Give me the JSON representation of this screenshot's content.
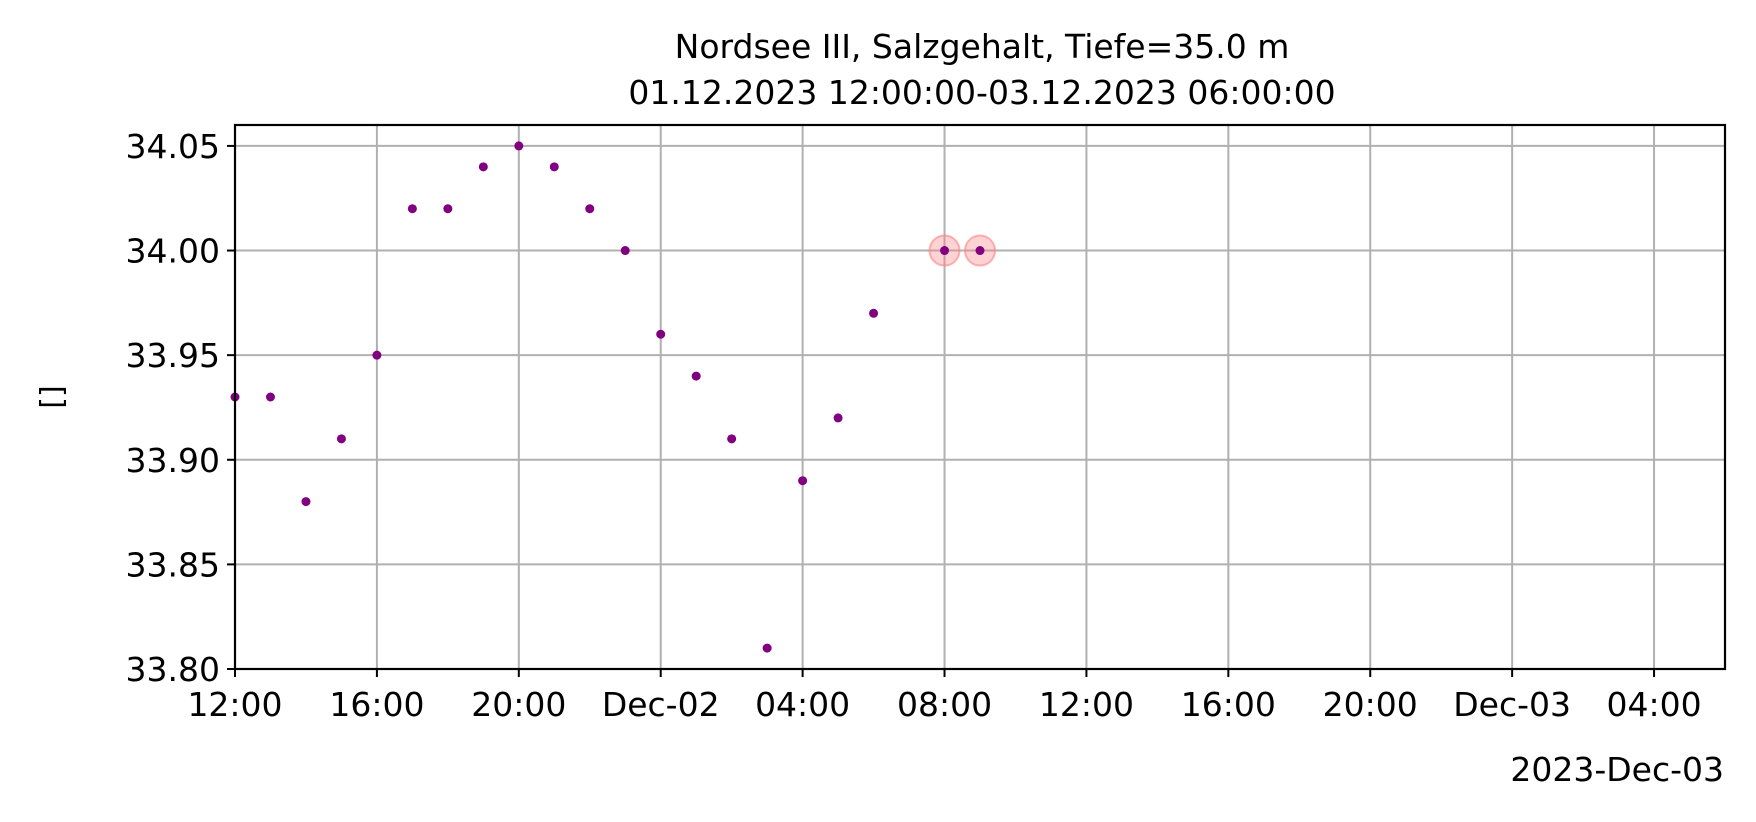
{
  "chart_data": {
    "type": "scatter",
    "title": "Nordsee III, Salzgehalt, Tiefe=35.0 m",
    "subtitle": "01.12.2023 12:00:00-03.12.2023 06:00:00",
    "xlabel": "",
    "ylabel": "[]",
    "x_offset_label": "2023-Dec-03",
    "xlim": [
      "2023-12-01 12:00",
      "2023-12-03 06:00"
    ],
    "ylim": [
      33.8,
      34.06
    ],
    "grid": true,
    "x_ticks": [
      {
        "x": "2023-12-01 12:00",
        "label": "12:00"
      },
      {
        "x": "2023-12-01 16:00",
        "label": "16:00"
      },
      {
        "x": "2023-12-01 20:00",
        "label": "20:00"
      },
      {
        "x": "2023-12-02 00:00",
        "label": "Dec-02"
      },
      {
        "x": "2023-12-02 04:00",
        "label": "04:00"
      },
      {
        "x": "2023-12-02 08:00",
        "label": "08:00"
      },
      {
        "x": "2023-12-02 12:00",
        "label": "12:00"
      },
      {
        "x": "2023-12-02 16:00",
        "label": "16:00"
      },
      {
        "x": "2023-12-02 20:00",
        "label": "20:00"
      },
      {
        "x": "2023-12-03 00:00",
        "label": "Dec-03"
      },
      {
        "x": "2023-12-03 04:00",
        "label": "04:00"
      }
    ],
    "y_ticks": [
      {
        "y": 33.8,
        "label": "33.80"
      },
      {
        "y": 33.85,
        "label": "33.85"
      },
      {
        "y": 33.9,
        "label": "33.90"
      },
      {
        "y": 33.95,
        "label": "33.95"
      },
      {
        "y": 34.0,
        "label": "34.00"
      },
      {
        "y": 34.05,
        "label": "34.05"
      }
    ],
    "colors": {
      "point": "#800080",
      "highlight": "#ff8080",
      "grid": "#b0b0b0"
    },
    "series": [
      {
        "points": [
          {
            "x": "2023-12-01 12:00",
            "y": 33.93
          },
          {
            "x": "2023-12-01 13:00",
            "y": 33.93
          },
          {
            "x": "2023-12-01 14:00",
            "y": 33.88
          },
          {
            "x": "2023-12-01 15:00",
            "y": 33.91
          },
          {
            "x": "2023-12-01 16:00",
            "y": 33.95
          },
          {
            "x": "2023-12-01 17:00",
            "y": 34.02
          },
          {
            "x": "2023-12-01 18:00",
            "y": 34.02
          },
          {
            "x": "2023-12-01 19:00",
            "y": 34.04
          },
          {
            "x": "2023-12-01 20:00",
            "y": 34.05
          },
          {
            "x": "2023-12-01 21:00",
            "y": 34.04
          },
          {
            "x": "2023-12-01 22:00",
            "y": 34.02
          },
          {
            "x": "2023-12-01 23:00",
            "y": 34.0
          },
          {
            "x": "2023-12-02 00:00",
            "y": 33.96
          },
          {
            "x": "2023-12-02 01:00",
            "y": 33.94
          },
          {
            "x": "2023-12-02 02:00",
            "y": 33.91
          },
          {
            "x": "2023-12-02 03:00",
            "y": 33.81
          },
          {
            "x": "2023-12-02 04:00",
            "y": 33.89
          },
          {
            "x": "2023-12-02 05:00",
            "y": 33.92
          },
          {
            "x": "2023-12-02 06:00",
            "y": 33.97
          },
          {
            "x": "2023-12-02 08:00",
            "y": 34.0,
            "highlighted": true
          },
          {
            "x": "2023-12-02 09:00",
            "y": 34.0,
            "highlighted": true
          }
        ]
      }
    ]
  }
}
